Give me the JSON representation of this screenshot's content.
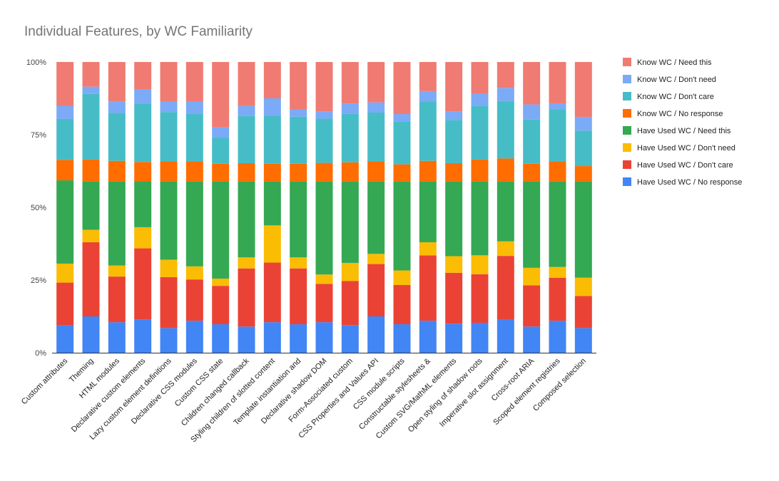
{
  "chart_data": {
    "type": "bar",
    "stacked": true,
    "normalized": true,
    "title": "Individual Features, by WC Familiarity",
    "xlabel": "",
    "ylabel": "",
    "ylim": [
      0,
      1
    ],
    "y_ticks": [
      {
        "value": 0,
        "label": "0%"
      },
      {
        "value": 0.25,
        "label": "25%"
      },
      {
        "value": 0.5,
        "label": "50%"
      },
      {
        "value": 0.75,
        "label": "75%"
      },
      {
        "value": 1,
        "label": "100%"
      }
    ],
    "grid": false,
    "legend_position": "right",
    "categories": [
      "Custom attributes",
      "Theming",
      "HTML modules",
      "Declarative custom elements",
      "Lazy custom element definitions",
      "Declarative CSS modules",
      "Custom CSS state",
      "Children changed callback",
      "Styling children of slotted content",
      "Template instantiation and",
      "Declarative shadow DOM",
      "Form-Associated custom",
      "CSS Properties and Values API",
      "CSS module scripts",
      "Constructable stylesheets &",
      "Custom SVG/MathML elements",
      "Open styling of shadow roots",
      "Imperative slot assignment",
      "Cross-root ARIA",
      "Scoped element registries",
      "Composed selection"
    ],
    "series": [
      {
        "name": "Have Used WC / No response",
        "color": "#4285f4",
        "values": [
          0.095,
          0.125,
          0.105,
          0.115,
          0.085,
          0.11,
          0.098,
          0.09,
          0.105,
          0.098,
          0.105,
          0.095,
          0.125,
          0.098,
          0.11,
          0.1,
          0.103,
          0.113,
          0.09,
          0.11,
          0.085
        ]
      },
      {
        "name": "Have Used WC / Don't care",
        "color": "#ea4335",
        "values": [
          0.145,
          0.255,
          0.157,
          0.245,
          0.175,
          0.142,
          0.132,
          0.2,
          0.205,
          0.192,
          0.132,
          0.152,
          0.18,
          0.135,
          0.225,
          0.175,
          0.167,
          0.22,
          0.142,
          0.148,
          0.11
        ]
      },
      {
        "name": "Have Used WC / Don't need",
        "color": "#fbbc04",
        "values": [
          0.065,
          0.043,
          0.038,
          0.073,
          0.06,
          0.045,
          0.025,
          0.038,
          0.128,
          0.038,
          0.032,
          0.062,
          0.035,
          0.05,
          0.045,
          0.057,
          0.065,
          0.05,
          0.06,
          0.037,
          0.063
        ]
      },
      {
        "name": "Have Used WC / Need this",
        "color": "#34a853",
        "values": [
          0.285,
          0.167,
          0.29,
          0.157,
          0.27,
          0.293,
          0.335,
          0.262,
          0.152,
          0.262,
          0.321,
          0.281,
          0.25,
          0.307,
          0.21,
          0.258,
          0.255,
          0.207,
          0.298,
          0.295,
          0.332
        ]
      },
      {
        "name": "Know WC / No response",
        "color": "#ff6d01",
        "values": [
          0.07,
          0.075,
          0.07,
          0.068,
          0.068,
          0.068,
          0.06,
          0.062,
          0.06,
          0.06,
          0.063,
          0.065,
          0.068,
          0.058,
          0.07,
          0.062,
          0.075,
          0.078,
          0.06,
          0.068,
          0.052
        ]
      },
      {
        "name": "Know WC / Don't care",
        "color": "#46bdc6",
        "values": [
          0.14,
          0.225,
          0.165,
          0.2,
          0.17,
          0.165,
          0.09,
          0.162,
          0.165,
          0.162,
          0.152,
          0.167,
          0.168,
          0.148,
          0.205,
          0.148,
          0.185,
          0.198,
          0.152,
          0.18,
          0.122
        ]
      },
      {
        "name": "Know WC / Don't need",
        "color": "#7baaf7",
        "values": [
          0.045,
          0.025,
          0.04,
          0.05,
          0.035,
          0.04,
          0.035,
          0.035,
          0.06,
          0.025,
          0.025,
          0.035,
          0.035,
          0.025,
          0.035,
          0.03,
          0.04,
          0.045,
          0.052,
          0.02,
          0.047
        ]
      },
      {
        "name": "Know WC / Need this",
        "color": "#f07b72",
        "values": [
          0.15,
          0.085,
          0.135,
          0.095,
          0.137,
          0.137,
          0.225,
          0.151,
          0.125,
          0.163,
          0.17,
          0.143,
          0.139,
          0.179,
          0.1,
          0.17,
          0.11,
          0.089,
          0.146,
          0.142,
          0.189
        ]
      }
    ]
  }
}
